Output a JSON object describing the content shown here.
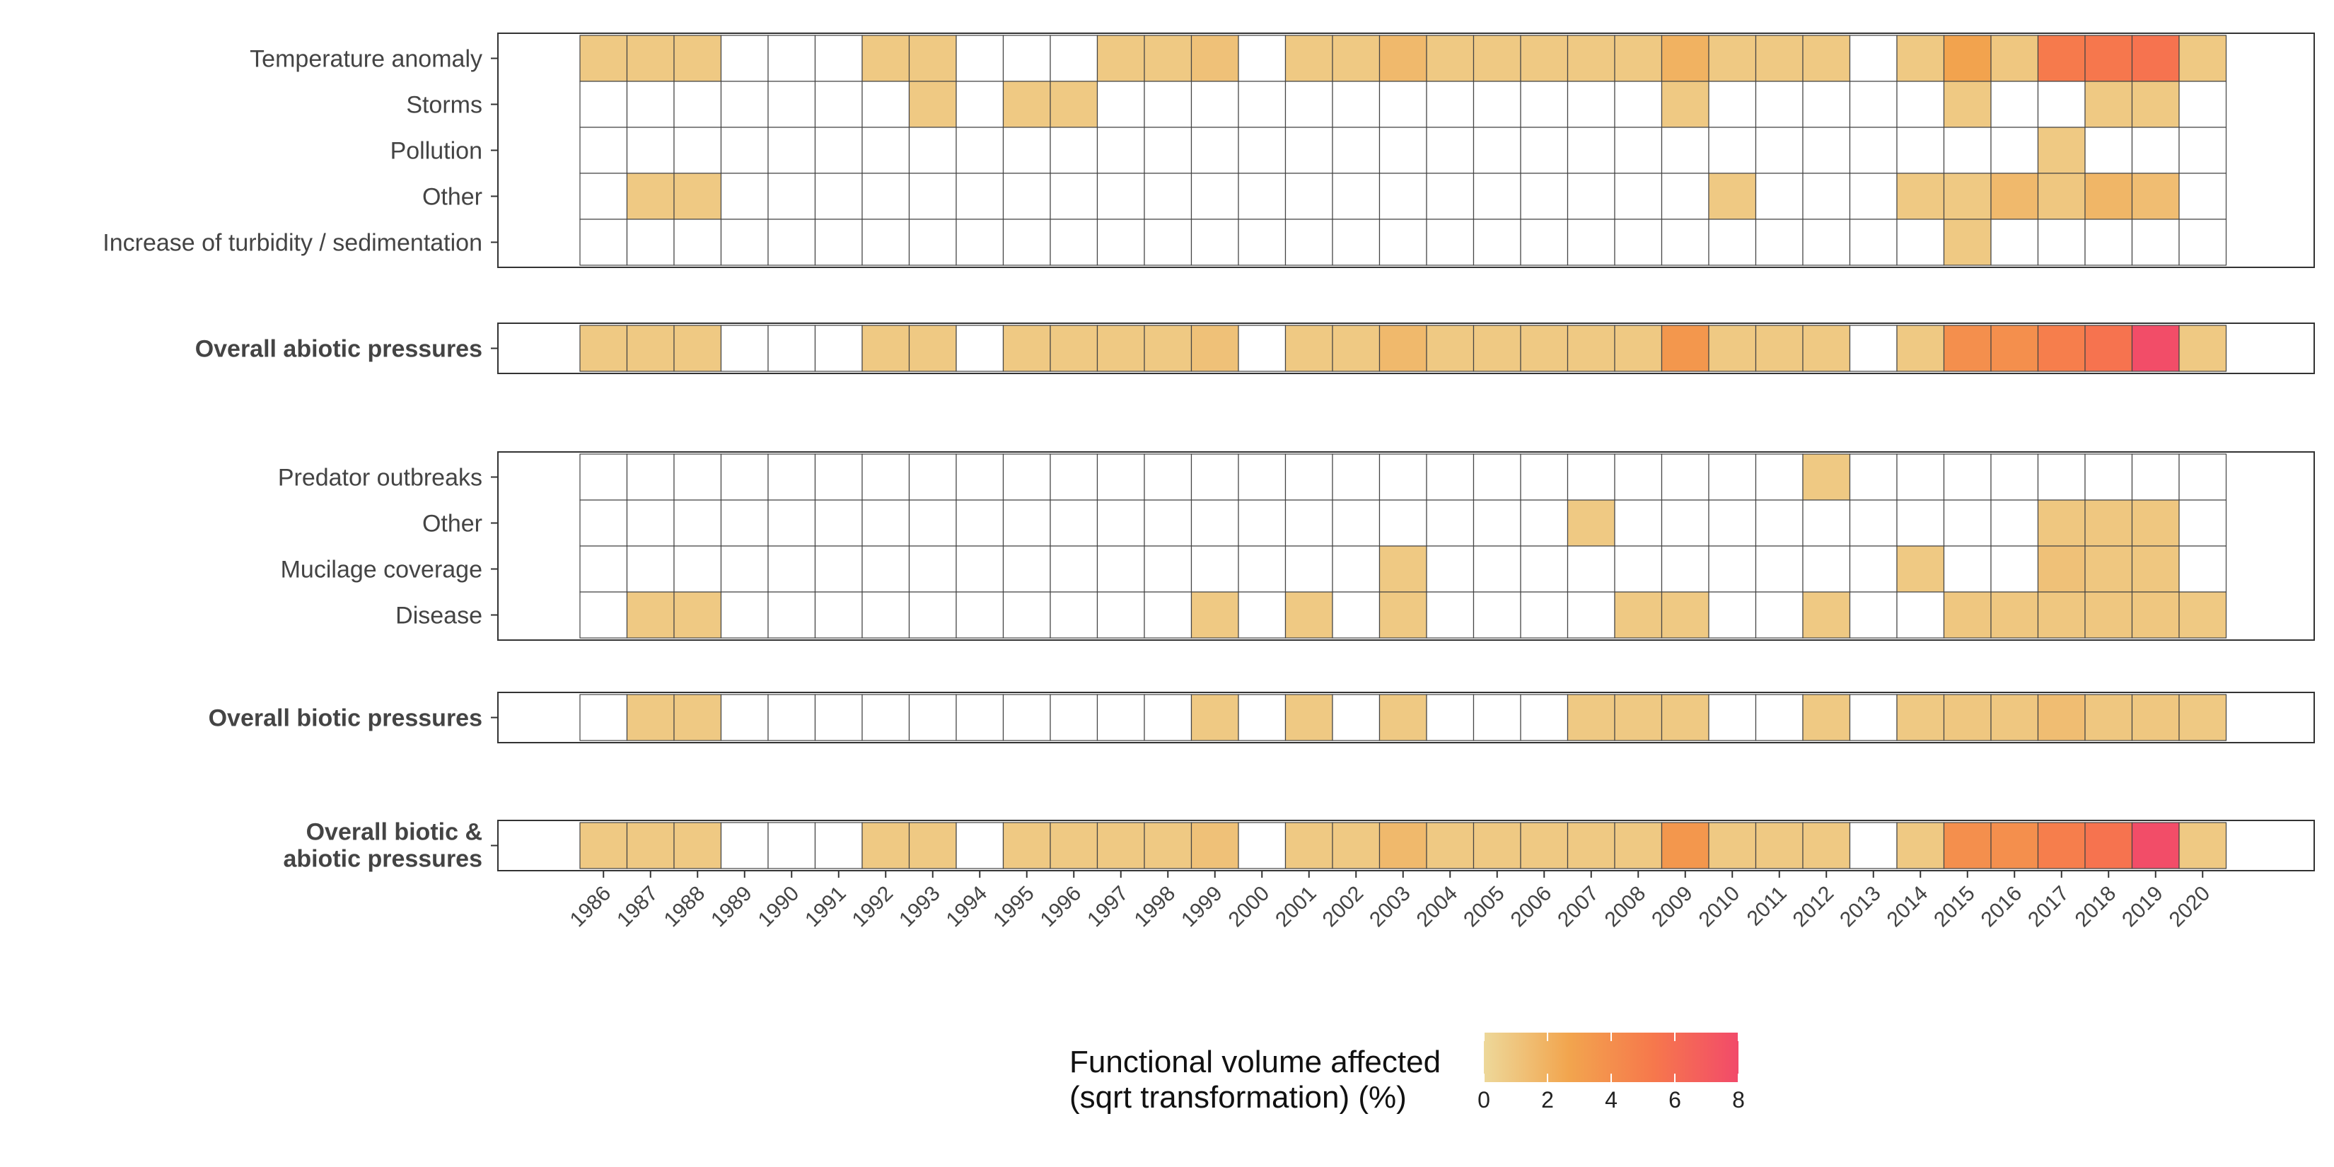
{
  "chart_data": {
    "type": "heatmap",
    "years": [
      1986,
      1987,
      1988,
      1989,
      1990,
      1991,
      1992,
      1993,
      1994,
      1995,
      1996,
      1997,
      1998,
      1999,
      2000,
      2001,
      2002,
      2003,
      2004,
      2005,
      2006,
      2007,
      2008,
      2009,
      2010,
      2011,
      2012,
      2013,
      2014,
      2015,
      2016,
      2017,
      2018,
      2019,
      2020
    ],
    "x_tick_labels": [
      "1986",
      "1987",
      "1988",
      "1989",
      "1990",
      "1991",
      "1992",
      "1993",
      "1994",
      "1995",
      "1996",
      "1997",
      "1998",
      "1999",
      "2000",
      "2001",
      "2002",
      "2003",
      "2004",
      "2005",
      "2006",
      "2007",
      "2008",
      "2009",
      "2010",
      "2011",
      "2012",
      "2013",
      "2014",
      "2015",
      "2016",
      "2017",
      "2018",
      "2019",
      "2020"
    ],
    "panels": [
      {
        "name": "abiotic",
        "rows": [
          {
            "label": "Temperature anomaly",
            "bold": false,
            "values": [
              0.8,
              0.8,
              0.8,
              null,
              null,
              null,
              0.8,
              0.8,
              null,
              null,
              null,
              0.8,
              0.8,
              1.2,
              null,
              0.8,
              0.8,
              1.6,
              0.8,
              0.8,
              0.8,
              0.8,
              0.8,
              2.0,
              0.8,
              0.8,
              0.8,
              null,
              0.8,
              2.8,
              0.9,
              5.2,
              5.4,
              5.6,
              0.8
            ]
          },
          {
            "label": "Storms",
            "bold": false,
            "values": [
              null,
              null,
              null,
              null,
              null,
              null,
              null,
              0.8,
              null,
              0.8,
              0.8,
              null,
              null,
              null,
              null,
              null,
              null,
              null,
              null,
              null,
              null,
              null,
              null,
              0.8,
              null,
              null,
              null,
              null,
              null,
              0.8,
              null,
              null,
              0.8,
              0.8,
              null
            ]
          },
          {
            "label": "Pollution",
            "bold": false,
            "values": [
              null,
              null,
              null,
              null,
              null,
              null,
              null,
              null,
              null,
              null,
              null,
              null,
              null,
              null,
              null,
              null,
              null,
              null,
              null,
              null,
              null,
              null,
              null,
              null,
              null,
              null,
              null,
              null,
              null,
              null,
              null,
              0.8,
              null,
              null,
              null
            ]
          },
          {
            "label": "Other",
            "bold": false,
            "values": [
              null,
              0.8,
              0.8,
              null,
              null,
              null,
              null,
              null,
              null,
              null,
              null,
              null,
              null,
              null,
              null,
              null,
              null,
              null,
              null,
              null,
              null,
              null,
              null,
              null,
              0.8,
              null,
              null,
              null,
              0.8,
              0.8,
              1.6,
              0.9,
              1.8,
              1.4,
              null
            ]
          },
          {
            "label": "Increase of turbidity / sedimentation",
            "bold": false,
            "values": [
              null,
              null,
              null,
              null,
              null,
              null,
              null,
              null,
              null,
              null,
              null,
              null,
              null,
              null,
              null,
              null,
              null,
              null,
              null,
              null,
              null,
              null,
              null,
              null,
              null,
              null,
              null,
              null,
              null,
              0.8,
              null,
              null,
              null,
              null,
              null
            ]
          }
        ]
      },
      {
        "name": "overall-abiotic",
        "rows": [
          {
            "label": "Overall abiotic pressures",
            "bold": true,
            "values": [
              0.8,
              0.8,
              0.8,
              null,
              null,
              null,
              0.8,
              0.8,
              null,
              0.8,
              0.8,
              0.8,
              0.8,
              1.2,
              null,
              0.8,
              0.8,
              1.6,
              0.8,
              0.8,
              0.8,
              0.8,
              0.8,
              3.5,
              0.8,
              0.8,
              0.8,
              null,
              0.8,
              4.0,
              4.0,
              5.0,
              5.6,
              7.8,
              0.8
            ]
          }
        ]
      },
      {
        "name": "biotic",
        "rows": [
          {
            "label": "Predator outbreaks",
            "bold": false,
            "values": [
              null,
              null,
              null,
              null,
              null,
              null,
              null,
              null,
              null,
              null,
              null,
              null,
              null,
              null,
              null,
              null,
              null,
              null,
              null,
              null,
              null,
              null,
              null,
              null,
              null,
              null,
              0.8,
              null,
              null,
              null,
              null,
              null,
              null,
              null,
              null
            ]
          },
          {
            "label": "Other",
            "bold": false,
            "values": [
              null,
              null,
              null,
              null,
              null,
              null,
              null,
              null,
              null,
              null,
              null,
              null,
              null,
              null,
              null,
              null,
              null,
              null,
              null,
              null,
              null,
              0.8,
              null,
              null,
              null,
              null,
              null,
              null,
              null,
              null,
              null,
              0.9,
              0.9,
              0.9,
              null
            ]
          },
          {
            "label": "Mucilage coverage",
            "bold": false,
            "values": [
              null,
              null,
              null,
              null,
              null,
              null,
              null,
              null,
              null,
              null,
              null,
              null,
              null,
              null,
              null,
              null,
              null,
              0.8,
              null,
              null,
              null,
              null,
              null,
              null,
              null,
              null,
              null,
              null,
              0.8,
              null,
              null,
              1.2,
              0.9,
              0.9,
              null
            ]
          },
          {
            "label": "Disease",
            "bold": false,
            "values": [
              null,
              0.8,
              0.8,
              null,
              null,
              null,
              null,
              null,
              null,
              null,
              null,
              null,
              null,
              0.8,
              null,
              0.8,
              null,
              0.8,
              null,
              null,
              null,
              null,
              0.8,
              0.8,
              null,
              null,
              0.8,
              null,
              null,
              0.9,
              0.9,
              0.9,
              0.9,
              0.9,
              0.8
            ]
          }
        ]
      },
      {
        "name": "overall-biotic",
        "rows": [
          {
            "label": "Overall biotic pressures",
            "bold": true,
            "values": [
              null,
              0.8,
              0.8,
              null,
              null,
              null,
              null,
              null,
              null,
              null,
              null,
              null,
              null,
              0.8,
              null,
              0.8,
              null,
              0.8,
              null,
              null,
              null,
              0.8,
              0.8,
              0.8,
              null,
              null,
              0.8,
              null,
              0.8,
              0.9,
              0.9,
              1.4,
              0.9,
              0.9,
              0.8
            ]
          }
        ]
      },
      {
        "name": "overall-combined",
        "rows": [
          {
            "label": "Overall biotic & abiotic pressures",
            "label_lines": [
              "Overall biotic &",
              "abiotic pressures"
            ],
            "bold": true,
            "values": [
              0.8,
              0.8,
              0.8,
              null,
              null,
              null,
              0.8,
              0.8,
              null,
              0.8,
              0.8,
              0.8,
              0.8,
              1.2,
              null,
              0.8,
              0.8,
              1.6,
              0.8,
              0.8,
              0.8,
              0.8,
              0.8,
              3.5,
              0.8,
              0.8,
              0.8,
              null,
              0.8,
              4.0,
              4.0,
              5.0,
              5.6,
              7.8,
              0.8
            ]
          }
        ]
      }
    ],
    "legend": {
      "title_lines": [
        "Functional volume affected",
        "(sqrt transformation) (%)"
      ],
      "min": 0,
      "max": 8,
      "ticks": [
        0,
        2,
        4,
        6,
        8
      ],
      "tick_labels": [
        "0",
        "2",
        "4",
        "6",
        "8"
      ],
      "colors": [
        "#EDD89A",
        "#F2A54E",
        "#F6784C",
        "#F24A6A"
      ],
      "placement": "bottom"
    },
    "empty_color": "#FFFFFF",
    "grid": true
  }
}
